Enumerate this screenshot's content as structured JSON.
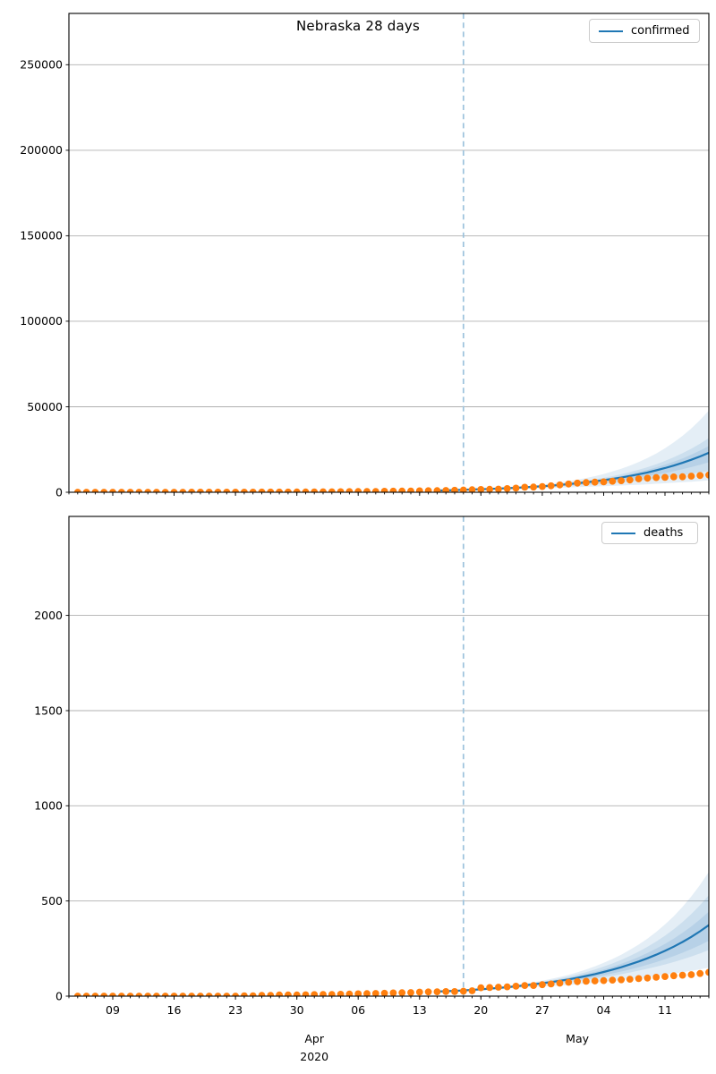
{
  "figure": {
    "title": "Nebraska 28 days",
    "background": "#ffffff"
  },
  "colors": {
    "forecast_line": "#1f77b4",
    "actual_dots": "#ff7f0e",
    "band_fill_rgba": "rgba(31,119,180,0.12)",
    "cutoff_line": "#9cc2dc",
    "grid": "#b0b0b0",
    "frame": "#000000",
    "tick_text": "#000000"
  },
  "x_axis": {
    "start_date": "2020-03-04",
    "end_date": "2020-05-16",
    "cutoff_date": "2020-04-18",
    "major_ticks": [
      {
        "date": "2020-03-09",
        "label": "09"
      },
      {
        "date": "2020-03-16",
        "label": "16"
      },
      {
        "date": "2020-03-23",
        "label": "23"
      },
      {
        "date": "2020-03-30",
        "label": "30"
      },
      {
        "date": "2020-04-06",
        "label": "06"
      },
      {
        "date": "2020-04-13",
        "label": "13"
      },
      {
        "date": "2020-04-20",
        "label": "20"
      },
      {
        "date": "2020-04-27",
        "label": "27"
      },
      {
        "date": "2020-05-04",
        "label": "04"
      },
      {
        "date": "2020-05-11",
        "label": "11"
      }
    ],
    "minor_tick_cadence": "daily",
    "month_labels": [
      {
        "date": "2020-04-01",
        "label": "Apr",
        "sublabel": "2020"
      },
      {
        "date": "2020-05-01",
        "label": "May",
        "sublabel": ""
      }
    ]
  },
  "chart_data": [
    {
      "type": "line",
      "name": "confirmed",
      "legend": "confirmed",
      "grid": "horizontal",
      "legend_position": "upper right",
      "ylim": [
        0,
        280000
      ],
      "y_ticks": [
        0,
        50000,
        100000,
        150000,
        200000,
        250000
      ],
      "actual": {
        "series": "reported daily cumulative confirmed",
        "start_date": "2020-03-05",
        "cadence": "daily",
        "values": [
          1,
          1,
          2,
          3,
          5,
          5,
          6,
          10,
          13,
          14,
          17,
          18,
          21,
          28,
          32,
          38,
          44,
          52,
          57,
          61,
          71,
          81,
          89,
          108,
          120,
          153,
          177,
          210,
          246,
          279,
          323,
          363,
          409,
          447,
          491,
          567,
          635,
          700,
          740,
          814,
          871,
          952,
          1066,
          1138,
          1287,
          1474,
          1648,
          1722,
          1813,
          2124,
          2421,
          2905,
          3028,
          3358,
          3784,
          4281,
          4838,
          5326,
          5661,
          5910,
          6083,
          6438,
          6771,
          7190,
          7831,
          8234,
          8572,
          8692,
          8953,
          9075,
          9416,
          9772,
          10064
        ]
      },
      "forecast": {
        "dates": [
          "2020-04-15",
          "2020-04-18",
          "2020-04-22",
          "2020-04-26",
          "2020-04-30",
          "2020-05-04",
          "2020-05-08",
          "2020-05-12",
          "2020-05-16"
        ],
        "median": [
          990,
          1450,
          2150,
          3200,
          4750,
          7050,
          10500,
          15600,
          23100
        ],
        "bands": [
          {
            "name": "outer",
            "low": [
              990,
              1450,
              1810,
              2270,
              2850,
              3530,
              4410,
              5550,
              6930
            ],
            "high": [
              990,
              1450,
              2390,
              3940,
              6490,
              10690,
              17660,
              29130,
              47800
            ]
          },
          {
            "name": "middle",
            "low": [
              990,
              1450,
              1970,
              2690,
              3650,
              4940,
              6770,
              9200,
              12470
            ],
            "high": [
              990,
              1450,
              2250,
              3500,
              5430,
              8430,
              13130,
              20440,
              31650
            ]
          },
          {
            "name": "inner",
            "low": [
              990,
              1450,
              2065,
              2960,
              4225,
              6030,
              8610,
              12320,
              17550
            ],
            "high": [
              990,
              1450,
              2200,
              3350,
              5080,
              7710,
              11760,
              17850,
              27030
            ]
          }
        ]
      }
    },
    {
      "type": "line",
      "name": "deaths",
      "legend": "deaths",
      "grid": "horizontal",
      "legend_position": "upper right",
      "ylim": [
        0,
        2520
      ],
      "y_ticks": [
        0,
        500,
        1000,
        1500,
        2000
      ],
      "actual": {
        "series": "reported daily cumulative deaths",
        "start_date": "2020-03-05",
        "cadence": "daily",
        "values": [
          0,
          0,
          0,
          0,
          0,
          0,
          0,
          0,
          0,
          0,
          0,
          0,
          0,
          0,
          0,
          0,
          0,
          0,
          0,
          2,
          2,
          4,
          4,
          6,
          6,
          6,
          7,
          8,
          9,
          9,
          10,
          11,
          12,
          13,
          14,
          15,
          17,
          18,
          19,
          21,
          22,
          23,
          24,
          24,
          26,
          28,
          44,
          45,
          47,
          49,
          52,
          56,
          56,
          60,
          64,
          68,
          73,
          76,
          78,
          80,
          82,
          84,
          86,
          89,
          92,
          95,
          99,
          103,
          107,
          110,
          113,
          119,
          125
        ]
      },
      "forecast": {
        "dates": [
          "2020-04-15",
          "2020-04-18",
          "2020-04-22",
          "2020-04-26",
          "2020-04-30",
          "2020-05-04",
          "2020-05-08",
          "2020-05-12",
          "2020-05-16"
        ],
        "median": [
          24,
          30,
          43,
          62,
          88,
          127,
          182,
          260,
          373
        ],
        "bands": [
          {
            "name": "outer",
            "low": [
              24,
              30,
              38,
              48,
              59,
              75,
              95,
              119,
              149
            ],
            "high": [
              24,
              30,
              47,
              73,
              112,
              175,
              271,
              420,
              653
            ]
          },
          {
            "name": "middle",
            "low": [
              24,
              30,
              40,
              55,
              73,
              99,
              134,
              179,
              242
            ],
            "high": [
              24,
              30,
              45,
              69,
              102,
              155,
              234,
              351,
              530
            ]
          },
          {
            "name": "inner",
            "low": [
              24,
              30,
              41,
              58,
              79,
              110,
              152,
              210,
              291
            ],
            "high": [
              24,
              30,
              44,
              65,
              95,
              140,
              206,
              302,
              444
            ]
          }
        ]
      }
    }
  ]
}
